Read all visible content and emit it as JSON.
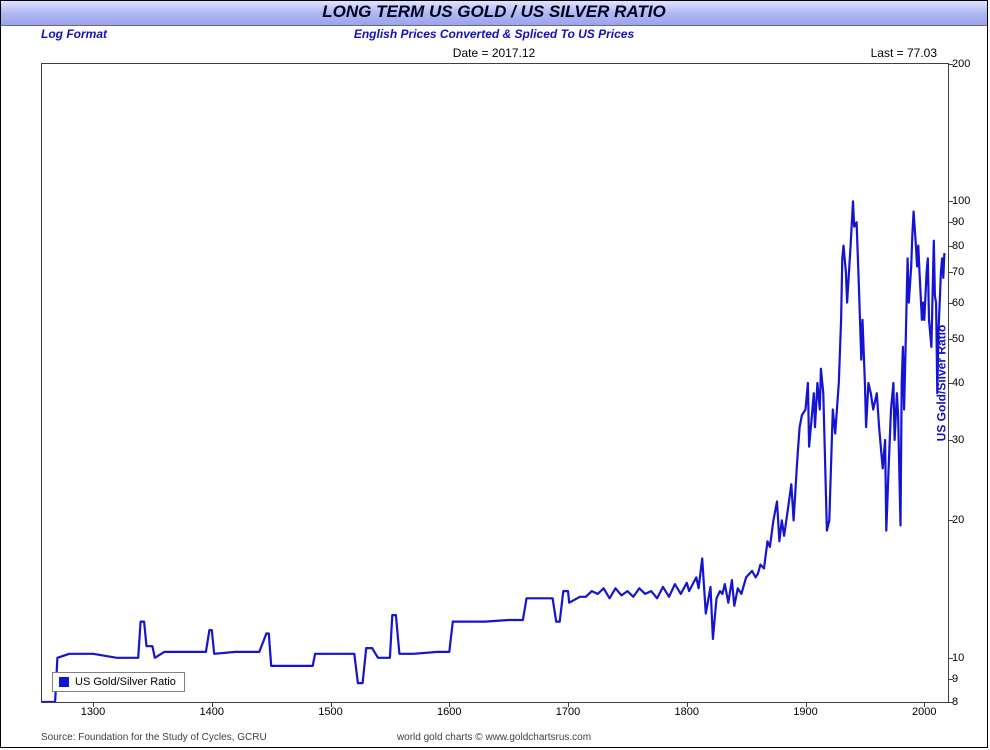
{
  "title": "LONG TERM US GOLD / US SILVER RATIO",
  "subtitle_left": "Log Format",
  "subtitle_center": "English Prices Converted & Spliced To US Prices",
  "info_date_label": "Date = 2017.12",
  "info_last_label": "Last = 77.03",
  "footer_left": "Source: Foundation for the Study of Cycles, GCRU",
  "footer_center": "world gold charts © www.goldchartsrus.com",
  "y_axis_title": "US Gold/Silver Ratio",
  "legend_label": "US Gold/Silver Ratio",
  "chart": {
    "type": "line",
    "scale": "log",
    "line_color": "#1414d2",
    "line_width": 2.2,
    "background_color": "#ffffff",
    "border_color": "#404040",
    "xlim": [
      1257,
      2020
    ],
    "ylim": [
      8,
      200
    ],
    "x_ticks": [
      1300,
      1400,
      1500,
      1600,
      1700,
      1800,
      1900,
      2000
    ],
    "y_ticks": [
      8,
      9,
      10,
      20,
      30,
      40,
      50,
      60,
      70,
      80,
      90,
      100,
      200
    ],
    "series": [
      [
        1257,
        8.0
      ],
      [
        1268,
        8.0
      ],
      [
        1270,
        10.0
      ],
      [
        1280,
        10.2
      ],
      [
        1300,
        10.2
      ],
      [
        1320,
        10.0
      ],
      [
        1338,
        10.0
      ],
      [
        1340,
        12.0
      ],
      [
        1343,
        12.0
      ],
      [
        1345,
        10.6
      ],
      [
        1350,
        10.6
      ],
      [
        1352,
        10.0
      ],
      [
        1360,
        10.3
      ],
      [
        1380,
        10.3
      ],
      [
        1395,
        10.3
      ],
      [
        1398,
        11.5
      ],
      [
        1400,
        11.5
      ],
      [
        1402,
        10.2
      ],
      [
        1420,
        10.3
      ],
      [
        1440,
        10.3
      ],
      [
        1446,
        11.3
      ],
      [
        1448,
        11.3
      ],
      [
        1450,
        9.6
      ],
      [
        1460,
        9.6
      ],
      [
        1485,
        9.6
      ],
      [
        1487,
        10.2
      ],
      [
        1500,
        10.2
      ],
      [
        1520,
        10.2
      ],
      [
        1523,
        8.8
      ],
      [
        1527,
        8.8
      ],
      [
        1530,
        10.5
      ],
      [
        1535,
        10.5
      ],
      [
        1540,
        10.0
      ],
      [
        1550,
        10.0
      ],
      [
        1552,
        12.4
      ],
      [
        1555,
        12.4
      ],
      [
        1558,
        10.2
      ],
      [
        1570,
        10.2
      ],
      [
        1590,
        10.3
      ],
      [
        1600,
        10.3
      ],
      [
        1603,
        12.0
      ],
      [
        1610,
        12.0
      ],
      [
        1630,
        12.0
      ],
      [
        1650,
        12.1
      ],
      [
        1662,
        12.1
      ],
      [
        1665,
        13.5
      ],
      [
        1670,
        13.5
      ],
      [
        1680,
        13.5
      ],
      [
        1687,
        13.5
      ],
      [
        1690,
        12.0
      ],
      [
        1693,
        12.0
      ],
      [
        1696,
        14.0
      ],
      [
        1700,
        14.0
      ],
      [
        1701,
        13.2
      ],
      [
        1710,
        13.6
      ],
      [
        1715,
        13.6
      ],
      [
        1720,
        14.0
      ],
      [
        1725,
        13.8
      ],
      [
        1730,
        14.2
      ],
      [
        1735,
        13.5
      ],
      [
        1740,
        14.2
      ],
      [
        1745,
        13.7
      ],
      [
        1750,
        14.0
      ],
      [
        1755,
        13.6
      ],
      [
        1760,
        14.2
      ],
      [
        1765,
        13.8
      ],
      [
        1770,
        14.0
      ],
      [
        1775,
        13.5
      ],
      [
        1780,
        14.3
      ],
      [
        1785,
        13.6
      ],
      [
        1790,
        14.5
      ],
      [
        1795,
        13.8
      ],
      [
        1800,
        14.6
      ],
      [
        1802,
        14.0
      ],
      [
        1805,
        14.5
      ],
      [
        1808,
        15.0
      ],
      [
        1810,
        14.2
      ],
      [
        1813,
        16.5
      ],
      [
        1816,
        12.5
      ],
      [
        1820,
        14.3
      ],
      [
        1822,
        11.0
      ],
      [
        1825,
        13.5
      ],
      [
        1828,
        14.0
      ],
      [
        1830,
        13.8
      ],
      [
        1832,
        14.5
      ],
      [
        1835,
        13.2
      ],
      [
        1838,
        14.8
      ],
      [
        1840,
        13.0
      ],
      [
        1843,
        14.2
      ],
      [
        1846,
        13.8
      ],
      [
        1850,
        15.0
      ],
      [
        1852,
        15.2
      ],
      [
        1855,
        15.5
      ],
      [
        1858,
        15.0
      ],
      [
        1860,
        15.3
      ],
      [
        1862,
        16.0
      ],
      [
        1865,
        15.7
      ],
      [
        1868,
        18.0
      ],
      [
        1870,
        17.5
      ],
      [
        1873,
        20.0
      ],
      [
        1876,
        22.0
      ],
      [
        1878,
        18.0
      ],
      [
        1880,
        20.0
      ],
      [
        1882,
        18.5
      ],
      [
        1885,
        21.0
      ],
      [
        1888,
        24.0
      ],
      [
        1890,
        20.0
      ],
      [
        1893,
        27.0
      ],
      [
        1895,
        32.0
      ],
      [
        1897,
        34.0
      ],
      [
        1900,
        35.0
      ],
      [
        1902,
        40.0
      ],
      [
        1903,
        29.0
      ],
      [
        1905,
        33.0
      ],
      [
        1907,
        38.0
      ],
      [
        1908,
        32.0
      ],
      [
        1910,
        40.0
      ],
      [
        1912,
        35.0
      ],
      [
        1913,
        43.0
      ],
      [
        1915,
        38.0
      ],
      [
        1918,
        19.0
      ],
      [
        1920,
        20.0
      ],
      [
        1923,
        35.0
      ],
      [
        1925,
        31.0
      ],
      [
        1928,
        40.0
      ],
      [
        1930,
        55.0
      ],
      [
        1931,
        75.0
      ],
      [
        1932,
        80.0
      ],
      [
        1934,
        70.0
      ],
      [
        1935,
        60.0
      ],
      [
        1938,
        80.0
      ],
      [
        1940,
        100.0
      ],
      [
        1941,
        88.0
      ],
      [
        1943,
        90.0
      ],
      [
        1945,
        65.0
      ],
      [
        1947,
        45.0
      ],
      [
        1948,
        55.0
      ],
      [
        1950,
        40.0
      ],
      [
        1951,
        32.0
      ],
      [
        1953,
        40.0
      ],
      [
        1955,
        38.0
      ],
      [
        1957,
        35.0
      ],
      [
        1960,
        38.0
      ],
      [
        1962,
        32.0
      ],
      [
        1965,
        26.0
      ],
      [
        1967,
        30.0
      ],
      [
        1968,
        19.0
      ],
      [
        1970,
        26.0
      ],
      [
        1972,
        35.0
      ],
      [
        1974,
        40.0
      ],
      [
        1975,
        30.0
      ],
      [
        1977,
        38.0
      ],
      [
        1978,
        34.0
      ],
      [
        1980,
        19.5
      ],
      [
        1981,
        40.0
      ],
      [
        1982,
        48.0
      ],
      [
        1983,
        35.0
      ],
      [
        1984,
        45.0
      ],
      [
        1986,
        75.0
      ],
      [
        1987,
        60.0
      ],
      [
        1989,
        72.0
      ],
      [
        1990,
        85.0
      ],
      [
        1991,
        95.0
      ],
      [
        1993,
        80.0
      ],
      [
        1994,
        72.0
      ],
      [
        1995,
        80.0
      ],
      [
        1996,
        70.0
      ],
      [
        1998,
        55.0
      ],
      [
        1999,
        60.0
      ],
      [
        2000,
        55.0
      ],
      [
        2002,
        70.0
      ],
      [
        2003,
        75.0
      ],
      [
        2004,
        55.0
      ],
      [
        2006,
        48.0
      ],
      [
        2008,
        82.0
      ],
      [
        2009,
        62.0
      ],
      [
        2010,
        60.0
      ],
      [
        2011,
        38.0
      ],
      [
        2012,
        52.0
      ],
      [
        2013,
        60.0
      ],
      [
        2014,
        70.0
      ],
      [
        2015,
        75.0
      ],
      [
        2016,
        68.0
      ],
      [
        2017,
        77.03
      ]
    ]
  }
}
